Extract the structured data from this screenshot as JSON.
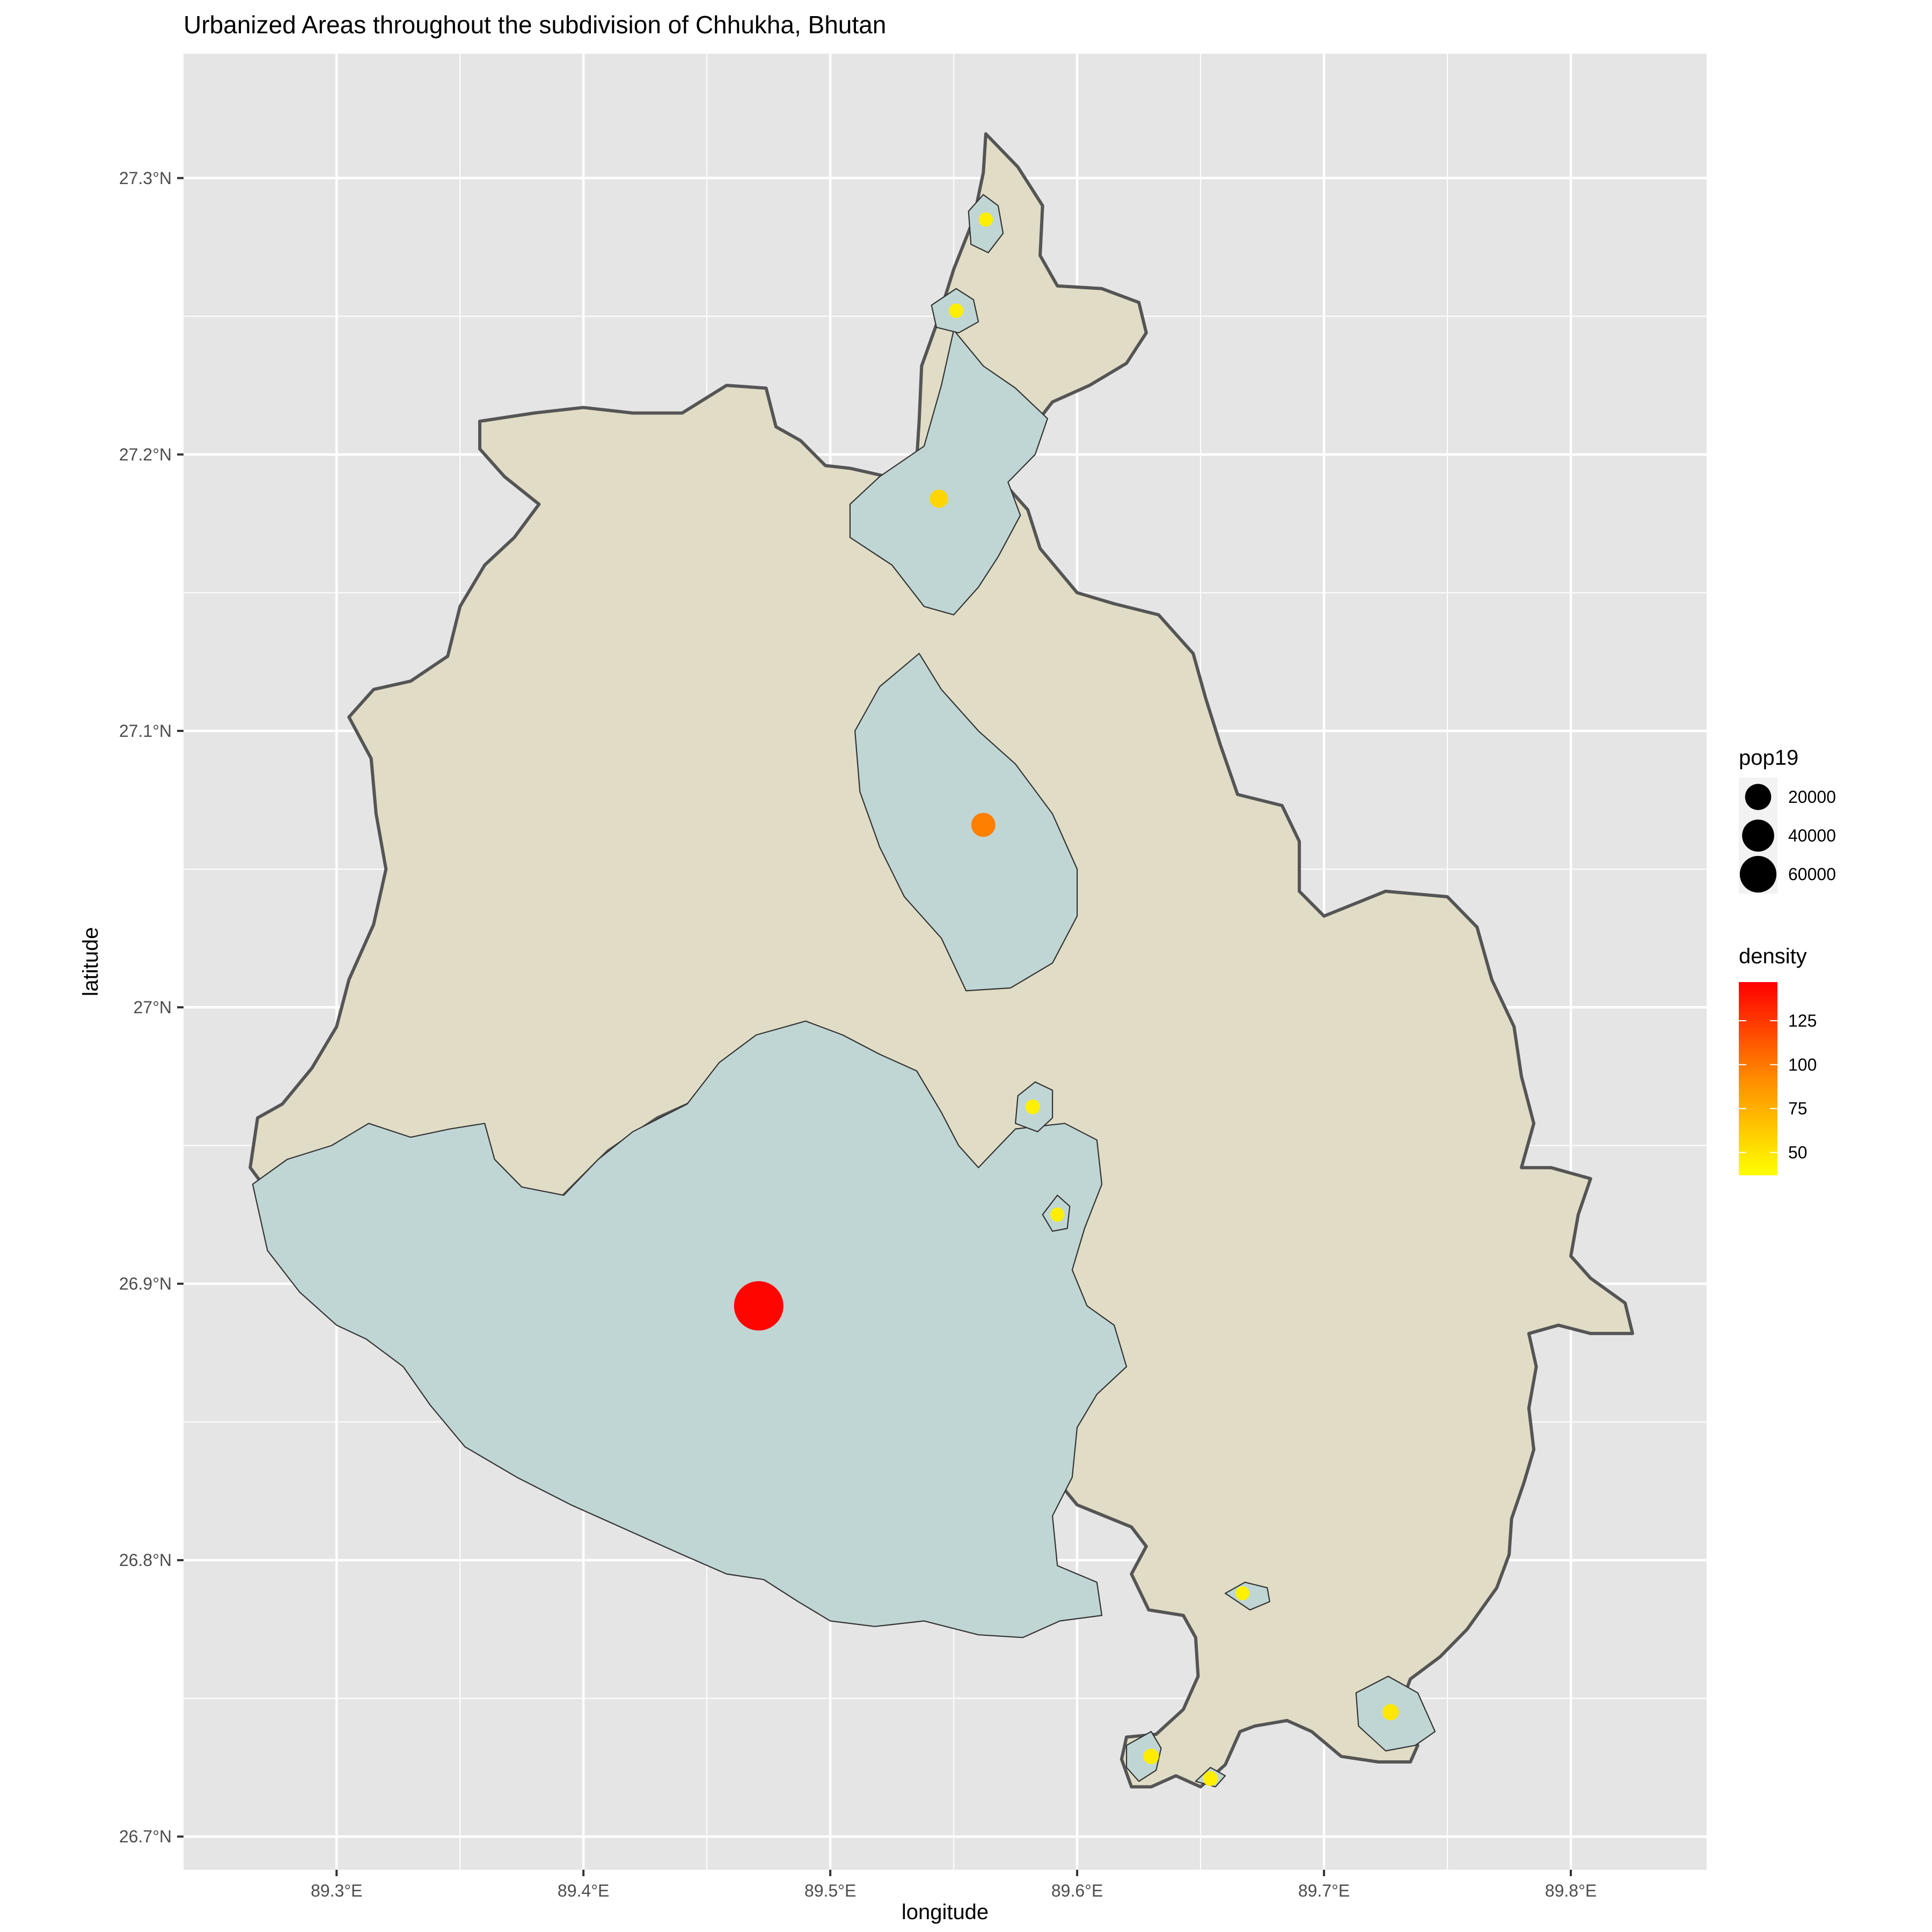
{
  "chart_data": {
    "type": "map",
    "title": "Urbanized Areas throughout the subdivision of Chhukha, Bhutan",
    "xlabel": "longitude",
    "ylabel": "latitude",
    "xlim": [
      89.238,
      89.855
    ],
    "ylim": [
      26.688,
      27.345
    ],
    "x_ticks": [
      89.3,
      89.4,
      89.5,
      89.6,
      89.7,
      89.8
    ],
    "x_tick_labels": [
      "89.3°E",
      "89.4°E",
      "89.5°E",
      "89.6°E",
      "89.7°E",
      "89.8°E"
    ],
    "y_ticks": [
      26.7,
      26.8,
      26.9,
      27.0,
      27.1,
      27.2,
      27.3
    ],
    "y_tick_labels": [
      "26.7°N",
      "26.8°N",
      "26.9°N",
      "27°N",
      "27.1°N",
      "27.2°N",
      "27.3°N"
    ],
    "grid": true,
    "colors": {
      "panel_background": "#e5e5e5",
      "grid_line": "#ffffff",
      "district_fill": "#e0dcc6",
      "district_border": "#555555",
      "urban_fill": "#c0d6d4",
      "urban_border": "#333333",
      "density_low": "#ffff00",
      "density_mid": "#ff8c00",
      "density_high": "#ff0000"
    },
    "district_outline": [
      [
        89.563,
        27.316
      ],
      [
        89.576,
        27.304
      ],
      [
        89.586,
        27.29
      ],
      [
        89.585,
        27.272
      ],
      [
        89.592,
        27.261
      ],
      [
        89.61,
        27.26
      ],
      [
        89.625,
        27.255
      ],
      [
        89.628,
        27.244
      ],
      [
        89.62,
        27.233
      ],
      [
        89.605,
        27.225
      ],
      [
        89.59,
        27.219
      ],
      [
        89.577,
        27.204
      ],
      [
        89.57,
        27.19
      ],
      [
        89.58,
        27.18
      ],
      [
        89.585,
        27.166
      ],
      [
        89.6,
        27.15
      ],
      [
        89.615,
        27.146
      ],
      [
        89.633,
        27.142
      ],
      [
        89.647,
        27.128
      ],
      [
        89.652,
        27.112
      ],
      [
        89.658,
        27.095
      ],
      [
        89.665,
        27.077
      ],
      [
        89.683,
        27.073
      ],
      [
        89.69,
        27.06
      ],
      [
        89.69,
        27.042
      ],
      [
        89.7,
        27.033
      ],
      [
        89.725,
        27.042
      ],
      [
        89.75,
        27.04
      ],
      [
        89.762,
        27.029
      ],
      [
        89.768,
        27.01
      ],
      [
        89.777,
        26.993
      ],
      [
        89.78,
        26.975
      ],
      [
        89.785,
        26.958
      ],
      [
        89.78,
        26.942
      ],
      [
        89.792,
        26.942
      ],
      [
        89.808,
        26.938
      ],
      [
        89.803,
        26.925
      ],
      [
        89.8,
        26.91
      ],
      [
        89.808,
        26.902
      ],
      [
        89.822,
        26.893
      ],
      [
        89.825,
        26.882
      ],
      [
        89.808,
        26.882
      ],
      [
        89.795,
        26.885
      ],
      [
        89.783,
        26.882
      ],
      [
        89.786,
        26.87
      ],
      [
        89.783,
        26.855
      ],
      [
        89.785,
        26.84
      ],
      [
        89.781,
        26.828
      ],
      [
        89.776,
        26.815
      ],
      [
        89.775,
        26.802
      ],
      [
        89.77,
        26.79
      ],
      [
        89.758,
        26.775
      ],
      [
        89.747,
        26.765
      ],
      [
        89.735,
        26.757
      ],
      [
        89.73,
        26.745
      ],
      [
        89.72,
        26.743
      ],
      [
        89.738,
        26.733
      ],
      [
        89.735,
        26.727
      ],
      [
        89.722,
        26.727
      ],
      [
        89.707,
        26.729
      ],
      [
        89.695,
        26.738
      ],
      [
        89.685,
        26.742
      ],
      [
        89.672,
        26.74
      ],
      [
        89.666,
        26.738
      ],
      [
        89.66,
        26.726
      ],
      [
        89.65,
        26.718
      ],
      [
        89.64,
        26.722
      ],
      [
        89.63,
        26.718
      ],
      [
        89.622,
        26.718
      ],
      [
        89.618,
        26.728
      ],
      [
        89.62,
        26.736
      ],
      [
        89.632,
        26.737
      ],
      [
        89.643,
        26.746
      ],
      [
        89.649,
        26.758
      ],
      [
        89.648,
        26.772
      ],
      [
        89.643,
        26.78
      ],
      [
        89.629,
        26.782
      ],
      [
        89.622,
        26.795
      ],
      [
        89.628,
        26.805
      ],
      [
        89.622,
        26.812
      ],
      [
        89.6,
        26.82
      ],
      [
        89.588,
        26.833
      ],
      [
        89.575,
        26.853
      ],
      [
        89.578,
        26.875
      ],
      [
        89.578,
        26.898
      ],
      [
        89.566,
        26.915
      ],
      [
        89.55,
        26.93
      ],
      [
        89.535,
        26.944
      ],
      [
        89.524,
        26.948
      ],
      [
        89.515,
        26.955
      ],
      [
        89.505,
        26.962
      ],
      [
        89.49,
        26.965
      ],
      [
        89.47,
        26.968
      ],
      [
        89.45,
        26.968
      ],
      [
        89.43,
        26.96
      ],
      [
        89.41,
        26.948
      ],
      [
        89.392,
        26.932
      ],
      [
        89.375,
        26.922
      ],
      [
        89.365,
        26.918
      ],
      [
        89.36,
        26.906
      ],
      [
        89.34,
        26.902
      ],
      [
        89.32,
        26.908
      ],
      [
        89.298,
        26.915
      ],
      [
        89.275,
        26.93
      ],
      [
        89.265,
        26.942
      ],
      [
        89.268,
        26.96
      ],
      [
        89.278,
        26.965
      ],
      [
        89.29,
        26.978
      ],
      [
        89.3,
        26.993
      ],
      [
        89.305,
        27.01
      ],
      [
        89.315,
        27.03
      ],
      [
        89.32,
        27.05
      ],
      [
        89.316,
        27.07
      ],
      [
        89.314,
        27.09
      ],
      [
        89.305,
        27.105
      ],
      [
        89.315,
        27.115
      ],
      [
        89.33,
        27.118
      ],
      [
        89.345,
        27.127
      ],
      [
        89.35,
        27.145
      ],
      [
        89.36,
        27.16
      ],
      [
        89.372,
        27.17
      ],
      [
        89.382,
        27.182
      ],
      [
        89.368,
        27.192
      ],
      [
        89.358,
        27.202
      ],
      [
        89.358,
        27.212
      ],
      [
        89.38,
        27.215
      ],
      [
        89.4,
        27.217
      ],
      [
        89.42,
        27.215
      ],
      [
        89.44,
        27.215
      ],
      [
        89.458,
        27.225
      ],
      [
        89.474,
        27.224
      ],
      [
        89.478,
        27.21
      ],
      [
        89.488,
        27.205
      ],
      [
        89.498,
        27.196
      ],
      [
        89.508,
        27.195
      ],
      [
        89.523,
        27.192
      ],
      [
        89.535,
        27.198
      ],
      [
        89.536,
        27.212
      ],
      [
        89.537,
        27.232
      ],
      [
        89.543,
        27.247
      ],
      [
        89.55,
        27.267
      ],
      [
        89.558,
        27.285
      ],
      [
        89.562,
        27.302
      ],
      [
        89.563,
        27.316
      ]
    ],
    "urban_areas": [
      [
        [
          89.266,
          26.936
        ],
        [
          89.28,
          26.945
        ],
        [
          89.298,
          26.95
        ],
        [
          89.313,
          26.958
        ],
        [
          89.33,
          26.953
        ],
        [
          89.346,
          26.956
        ],
        [
          89.36,
          26.958
        ],
        [
          89.364,
          26.945
        ],
        [
          89.375,
          26.935
        ],
        [
          89.392,
          26.932
        ],
        [
          89.406,
          26.945
        ],
        [
          89.42,
          26.955
        ],
        [
          89.442,
          26.965
        ],
        [
          89.455,
          26.98
        ],
        [
          89.47,
          26.99
        ],
        [
          89.49,
          26.995
        ],
        [
          89.505,
          26.99
        ],
        [
          89.52,
          26.983
        ],
        [
          89.535,
          26.977
        ],
        [
          89.545,
          26.962
        ],
        [
          89.552,
          26.95
        ],
        [
          89.56,
          26.942
        ],
        [
          89.575,
          26.956
        ],
        [
          89.595,
          26.958
        ],
        [
          89.608,
          26.952
        ],
        [
          89.61,
          26.936
        ],
        [
          89.603,
          26.92
        ],
        [
          89.598,
          26.905
        ],
        [
          89.604,
          26.892
        ],
        [
          89.615,
          26.885
        ],
        [
          89.62,
          26.87
        ],
        [
          89.608,
          26.86
        ],
        [
          89.6,
          26.848
        ],
        [
          89.598,
          26.83
        ],
        [
          89.59,
          26.816
        ],
        [
          89.592,
          26.798
        ],
        [
          89.608,
          26.792
        ],
        [
          89.61,
          26.78
        ],
        [
          89.593,
          26.778
        ],
        [
          89.578,
          26.772
        ],
        [
          89.56,
          26.773
        ],
        [
          89.538,
          26.778
        ],
        [
          89.518,
          26.776
        ],
        [
          89.5,
          26.778
        ],
        [
          89.487,
          26.785
        ],
        [
          89.473,
          26.793
        ],
        [
          89.458,
          26.795
        ],
        [
          89.44,
          26.802
        ],
        [
          89.42,
          26.81
        ],
        [
          89.395,
          26.82
        ],
        [
          89.373,
          26.83
        ],
        [
          89.352,
          26.841
        ],
        [
          89.338,
          26.856
        ],
        [
          89.327,
          26.87
        ],
        [
          89.312,
          26.88
        ],
        [
          89.3,
          26.885
        ],
        [
          89.285,
          26.897
        ],
        [
          89.272,
          26.912
        ],
        [
          89.266,
          26.936
        ]
      ],
      [
        [
          89.55,
          27.245
        ],
        [
          89.562,
          27.232
        ],
        [
          89.575,
          27.224
        ],
        [
          89.588,
          27.213
        ],
        [
          89.583,
          27.2
        ],
        [
          89.572,
          27.19
        ],
        [
          89.577,
          27.178
        ],
        [
          89.568,
          27.163
        ],
        [
          89.56,
          27.152
        ],
        [
          89.55,
          27.142
        ],
        [
          89.538,
          27.145
        ],
        [
          89.525,
          27.16
        ],
        [
          89.508,
          27.17
        ],
        [
          89.508,
          27.182
        ],
        [
          89.52,
          27.192
        ],
        [
          89.538,
          27.203
        ],
        [
          89.545,
          27.225
        ],
        [
          89.55,
          27.245
        ]
      ],
      [
        [
          89.536,
          27.128
        ],
        [
          89.545,
          27.115
        ],
        [
          89.56,
          27.1
        ],
        [
          89.575,
          27.088
        ],
        [
          89.59,
          27.07
        ],
        [
          89.6,
          27.05
        ],
        [
          89.6,
          27.033
        ],
        [
          89.59,
          27.016
        ],
        [
          89.573,
          27.007
        ],
        [
          89.555,
          27.006
        ],
        [
          89.545,
          27.025
        ],
        [
          89.53,
          27.04
        ],
        [
          89.52,
          27.058
        ],
        [
          89.512,
          27.078
        ],
        [
          89.51,
          27.1
        ],
        [
          89.52,
          27.116
        ],
        [
          89.536,
          27.128
        ]
      ],
      [
        [
          89.562,
          27.294
        ],
        [
          89.568,
          27.29
        ],
        [
          89.57,
          27.28
        ],
        [
          89.564,
          27.273
        ],
        [
          89.557,
          27.276
        ],
        [
          89.556,
          27.288
        ],
        [
          89.562,
          27.294
        ]
      ],
      [
        [
          89.551,
          27.26
        ],
        [
          89.558,
          27.256
        ],
        [
          89.56,
          27.248
        ],
        [
          89.552,
          27.244
        ],
        [
          89.543,
          27.246
        ],
        [
          89.541,
          27.254
        ],
        [
          89.551,
          27.26
        ]
      ],
      [
        [
          89.583,
          26.973
        ],
        [
          89.59,
          26.97
        ],
        [
          89.59,
          26.96
        ],
        [
          89.584,
          26.955
        ],
        [
          89.575,
          26.958
        ],
        [
          89.576,
          26.968
        ],
        [
          89.583,
          26.973
        ]
      ],
      [
        [
          89.592,
          26.932
        ],
        [
          89.597,
          26.928
        ],
        [
          89.596,
          26.92
        ],
        [
          89.59,
          26.919
        ],
        [
          89.586,
          26.925
        ],
        [
          89.592,
          26.932
        ]
      ],
      [
        [
          89.668,
          26.792
        ],
        [
          89.677,
          26.79
        ],
        [
          89.678,
          26.785
        ],
        [
          89.67,
          26.782
        ],
        [
          89.66,
          26.788
        ],
        [
          89.668,
          26.792
        ]
      ],
      [
        [
          89.726,
          26.758
        ],
        [
          89.738,
          26.752
        ],
        [
          89.745,
          26.738
        ],
        [
          89.737,
          26.733
        ],
        [
          89.725,
          26.731
        ],
        [
          89.714,
          26.74
        ],
        [
          89.713,
          26.752
        ],
        [
          89.726,
          26.758
        ]
      ],
      [
        [
          89.63,
          26.738
        ],
        [
          89.634,
          26.732
        ],
        [
          89.632,
          26.724
        ],
        [
          89.625,
          26.72
        ],
        [
          89.62,
          26.725
        ],
        [
          89.62,
          26.733
        ],
        [
          89.63,
          26.738
        ]
      ],
      [
        [
          89.654,
          26.725
        ],
        [
          89.66,
          26.722
        ],
        [
          89.656,
          26.718
        ],
        [
          89.648,
          26.72
        ],
        [
          89.654,
          26.725
        ]
      ]
    ],
    "points": [
      {
        "lon": 89.471,
        "lat": 26.892,
        "pop19": 62000,
        "density": 145
      },
      {
        "lon": 89.562,
        "lat": 27.066,
        "pop19": 9000,
        "density": 97
      },
      {
        "lon": 89.544,
        "lat": 27.184,
        "pop19": 3500,
        "density": 57
      },
      {
        "lon": 89.563,
        "lat": 27.285,
        "pop19": 1200,
        "density": 45
      },
      {
        "lon": 89.551,
        "lat": 27.252,
        "pop19": 1300,
        "density": 45
      },
      {
        "lon": 89.582,
        "lat": 26.964,
        "pop19": 1400,
        "density": 44
      },
      {
        "lon": 89.592,
        "lat": 26.925,
        "pop19": 1200,
        "density": 45
      },
      {
        "lon": 89.667,
        "lat": 26.788,
        "pop19": 1100,
        "density": 44
      },
      {
        "lon": 89.727,
        "lat": 26.745,
        "pop19": 2200,
        "density": 48
      },
      {
        "lon": 89.63,
        "lat": 26.729,
        "pop19": 1800,
        "density": 46
      },
      {
        "lon": 89.654,
        "lat": 26.721,
        "pop19": 1500,
        "density": 45
      }
    ],
    "legend_size": {
      "title": "pop19",
      "entries": [
        {
          "label": "20000",
          "value": 20000
        },
        {
          "label": "40000",
          "value": 40000
        },
        {
          "label": "60000",
          "value": 60000
        }
      ]
    },
    "legend_color": {
      "title": "density",
      "range": [
        37,
        147
      ],
      "ticks": [
        50,
        75,
        100,
        125
      ],
      "tick_labels": [
        "50",
        "75",
        "100",
        "125"
      ]
    }
  }
}
